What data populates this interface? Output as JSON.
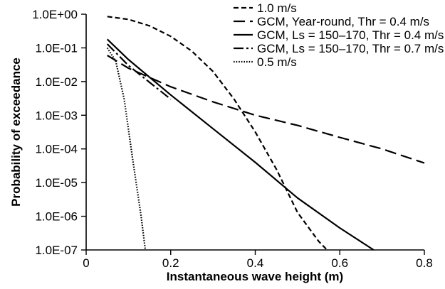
{
  "chart_data": {
    "type": "line",
    "title": "",
    "xlabel": "Instantaneous wave height (m)",
    "ylabel": "Probability of exceedance",
    "xlim": [
      0,
      0.8
    ],
    "ylim": [
      1e-07,
      1
    ],
    "yscale": "log",
    "grid": false,
    "legend_position": "top-right",
    "x_ticks": [
      {
        "value": 0,
        "label": "0"
      },
      {
        "value": 0.2,
        "label": "0.2"
      },
      {
        "value": 0.4,
        "label": "0.4"
      },
      {
        "value": 0.6,
        "label": "0.6"
      },
      {
        "value": 0.8,
        "label": "0.8"
      }
    ],
    "y_ticks": [
      {
        "value": 1e-07,
        "label": "1.0E-07"
      },
      {
        "value": 1e-06,
        "label": "1.0E-06"
      },
      {
        "value": 1e-05,
        "label": "1.0E-05"
      },
      {
        "value": 0.0001,
        "label": "1.0E-04"
      },
      {
        "value": 0.001,
        "label": "1.0E-03"
      },
      {
        "value": 0.01,
        "label": "1.0E-02"
      },
      {
        "value": 0.1,
        "label": "1.0E-01"
      },
      {
        "value": 1,
        "label": "1.0E+00"
      }
    ],
    "series": [
      {
        "name": "1.0 m/s",
        "color": "#000000",
        "dash": "7,4",
        "points": [
          [
            0.05,
            0.85
          ],
          [
            0.1,
            0.7
          ],
          [
            0.15,
            0.45
          ],
          [
            0.2,
            0.22
          ],
          [
            0.25,
            0.08
          ],
          [
            0.3,
            0.02
          ],
          [
            0.35,
            0.003
          ],
          [
            0.4,
            0.00032
          ],
          [
            0.45,
            2.5e-05
          ],
          [
            0.5,
            1.3e-06
          ],
          [
            0.55,
            1.8e-07
          ],
          [
            0.57,
            1e-07
          ]
        ]
      },
      {
        "name": "GCM, Year-round, Thr = 0.4 m/s",
        "color": "#000000",
        "dash": "16,7",
        "points": [
          [
            0.05,
            0.06
          ],
          [
            0.1,
            0.025
          ],
          [
            0.2,
            0.007
          ],
          [
            0.3,
            0.0025
          ],
          [
            0.4,
            0.001
          ],
          [
            0.5,
            0.0005
          ],
          [
            0.6,
            0.00022
          ],
          [
            0.7,
            0.0001
          ],
          [
            0.8,
            3.8e-05
          ]
        ]
      },
      {
        "name": "GCM, Ls = 150–170, Thr = 0.4 m/s",
        "color": "#000000",
        "dash": "",
        "points": [
          [
            0.05,
            0.18
          ],
          [
            0.1,
            0.045
          ],
          [
            0.2,
            0.004
          ],
          [
            0.3,
            0.0004
          ],
          [
            0.4,
            4e-05
          ],
          [
            0.5,
            3.5e-06
          ],
          [
            0.6,
            4.5e-07
          ],
          [
            0.68,
            1e-07
          ]
        ]
      },
      {
        "name": "GCM, Ls = 150–170, Thr = 0.7 m/s",
        "color": "#000000",
        "dash": "14,4,3,4",
        "points": [
          [
            0.05,
            0.13
          ],
          [
            0.1,
            0.03
          ],
          [
            0.2,
            0.003
          ]
        ]
      },
      {
        "name": "0.5 m/s",
        "color": "#000000",
        "dash": "1.6,2",
        "points": [
          [
            0.05,
            0.1
          ],
          [
            0.07,
            0.04
          ],
          [
            0.09,
            0.003
          ],
          [
            0.11,
            5e-05
          ],
          [
            0.13,
            1e-06
          ],
          [
            0.14,
            1e-07
          ]
        ]
      }
    ]
  }
}
